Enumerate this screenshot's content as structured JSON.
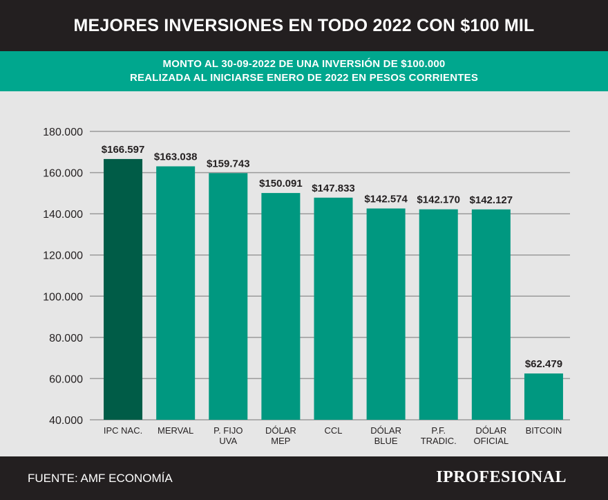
{
  "header": {
    "title": "MEJORES INVERSIONES EN TODO 2022 CON $100 MIL",
    "subtitle_line1": "MONTO AL 30-09-2022 DE UNA INVERSIÓN DE $100.000",
    "subtitle_line2": "REALIZADA AL INICIARSE ENERO DE 2022 EN PESOS CORRIENTES"
  },
  "footer": {
    "source": "FUENTE: AMF ECONOMÍA",
    "brand": "IPROFESIONAL"
  },
  "colors": {
    "highlight_bar": "#005c47",
    "bar": "#009880",
    "grid": "#9a9a9a"
  },
  "chart_data": {
    "type": "bar",
    "categories": [
      [
        "IPC NAC."
      ],
      [
        "MERVAL"
      ],
      [
        "P. FIJO",
        "UVA"
      ],
      [
        "DÓLAR",
        "MEP"
      ],
      [
        "CCL"
      ],
      [
        "DÓLAR",
        "BLUE"
      ],
      [
        "P.F.",
        "TRADIC."
      ],
      [
        "DÓLAR",
        "OFICIAL"
      ],
      [
        "BITCOIN"
      ]
    ],
    "values": [
      166597,
      163038,
      159743,
      150091,
      147833,
      142574,
      142170,
      142127,
      62479
    ],
    "value_labels": [
      "$166.597",
      "$163.038",
      "$159.743",
      "$150.091",
      "$147.833",
      "$142.574",
      "$142.170",
      "$142.127",
      "$62.479"
    ],
    "highlight_index": 0,
    "ylim": [
      40000,
      180000
    ],
    "yticks": [
      40000,
      60000,
      80000,
      100000,
      120000,
      140000,
      160000,
      180000
    ],
    "ytick_labels": [
      "40.000",
      "60.000",
      "80.000",
      "100.000",
      "120.000",
      "140.000",
      "160.000",
      "180.000"
    ],
    "grid": true,
    "xlabel": "",
    "ylabel": ""
  }
}
